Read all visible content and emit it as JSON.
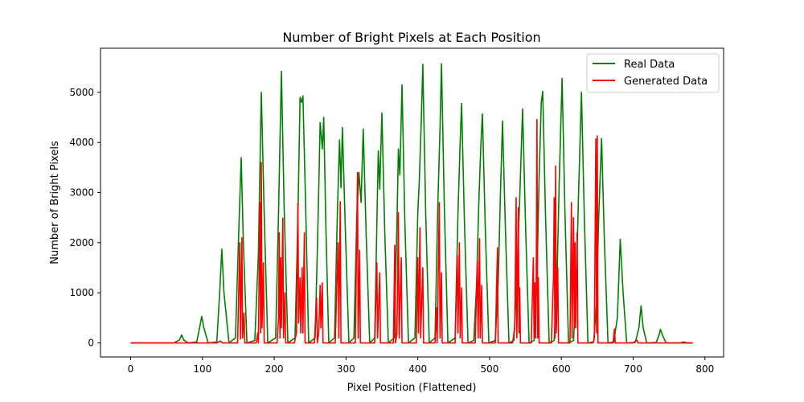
{
  "chart_data": {
    "type": "line",
    "title": "Number of Bright Pixels at Each Position",
    "xlabel": "Pixel Position (Flattened)",
    "ylabel": "Number of Bright Pixels",
    "xlim": [
      -42,
      826
    ],
    "ylim": [
      -280,
      5880
    ],
    "xticks": [
      0,
      100,
      200,
      300,
      400,
      500,
      600,
      700,
      800
    ],
    "yticks": [
      0,
      1000,
      2000,
      3000,
      4000,
      5000
    ],
    "xtick_labels": [
      "0",
      "100",
      "200",
      "300",
      "400",
      "500",
      "600",
      "700",
      "800"
    ],
    "ytick_labels": [
      "0",
      "1000",
      "2000",
      "3000",
      "4000",
      "5000"
    ],
    "grid": false,
    "legend_position": "upper right",
    "series": [
      {
        "name": "Real Data",
        "color": "#008000",
        "points": [
          [
            0,
            0
          ],
          [
            60,
            0
          ],
          [
            68,
            60
          ],
          [
            71,
            160
          ],
          [
            74,
            60
          ],
          [
            80,
            0
          ],
          [
            92,
            20
          ],
          [
            96,
            300
          ],
          [
            99,
            530
          ],
          [
            102,
            300
          ],
          [
            108,
            0
          ],
          [
            120,
            20
          ],
          [
            124,
            1000
          ],
          [
            127,
            1870
          ],
          [
            130,
            1000
          ],
          [
            137,
            0
          ],
          [
            146,
            100
          ],
          [
            151,
            2400
          ],
          [
            154,
            3700
          ],
          [
            157,
            2000
          ],
          [
            162,
            0
          ],
          [
            173,
            50
          ],
          [
            178,
            1800
          ],
          [
            182,
            5000
          ],
          [
            186,
            2600
          ],
          [
            191,
            0
          ],
          [
            202,
            100
          ],
          [
            206,
            2600
          ],
          [
            210,
            5420
          ],
          [
            214,
            2600
          ],
          [
            219,
            0
          ],
          [
            229,
            100
          ],
          [
            233,
            2500
          ],
          [
            236,
            4900
          ],
          [
            238,
            4800
          ],
          [
            240,
            4930
          ],
          [
            244,
            2600
          ],
          [
            248,
            0
          ],
          [
            257,
            100
          ],
          [
            261,
            2400
          ],
          [
            264,
            4400
          ],
          [
            267,
            3870
          ],
          [
            269,
            4500
          ],
          [
            272,
            2300
          ],
          [
            276,
            0
          ],
          [
            284,
            100
          ],
          [
            288,
            2600
          ],
          [
            291,
            4050
          ],
          [
            293,
            3100
          ],
          [
            295,
            4300
          ],
          [
            299,
            2300
          ],
          [
            304,
            0
          ],
          [
            311,
            100
          ],
          [
            315,
            2500
          ],
          [
            318,
            3400
          ],
          [
            321,
            2800
          ],
          [
            324,
            4270
          ],
          [
            328,
            2200
          ],
          [
            333,
            0
          ],
          [
            340,
            100
          ],
          [
            343,
            2400
          ],
          [
            345,
            3830
          ],
          [
            347,
            3070
          ],
          [
            350,
            4590
          ],
          [
            354,
            2200
          ],
          [
            359,
            0
          ],
          [
            367,
            100
          ],
          [
            371,
            2400
          ],
          [
            373,
            3870
          ],
          [
            375,
            3350
          ],
          [
            378,
            5150
          ],
          [
            382,
            2400
          ],
          [
            387,
            0
          ],
          [
            396,
            100
          ],
          [
            400,
            2600
          ],
          [
            402,
            3200
          ],
          [
            405,
            4500
          ],
          [
            407,
            5560
          ],
          [
            411,
            2600
          ],
          [
            416,
            0
          ],
          [
            424,
            100
          ],
          [
            428,
            2800
          ],
          [
            431,
            4300
          ],
          [
            433,
            5570
          ],
          [
            437,
            2700
          ],
          [
            442,
            0
          ],
          [
            452,
            100
          ],
          [
            456,
            2600
          ],
          [
            459,
            4000
          ],
          [
            461,
            4780
          ],
          [
            465,
            2400
          ],
          [
            470,
            0
          ],
          [
            478,
            50
          ],
          [
            482,
            1200
          ],
          [
            485,
            2800
          ],
          [
            488,
            4000
          ],
          [
            490,
            4570
          ],
          [
            494,
            2300
          ],
          [
            499,
            0
          ],
          [
            508,
            50
          ],
          [
            512,
            1200
          ],
          [
            515,
            2900
          ],
          [
            518,
            4430
          ],
          [
            522,
            2300
          ],
          [
            527,
            0
          ],
          [
            534,
            50
          ],
          [
            538,
            1300
          ],
          [
            542,
            2900
          ],
          [
            546,
            4670
          ],
          [
            550,
            2400
          ],
          [
            555,
            0
          ],
          [
            562,
            50
          ],
          [
            566,
            1300
          ],
          [
            569,
            3300
          ],
          [
            572,
            4800
          ],
          [
            574,
            5020
          ],
          [
            578,
            2500
          ],
          [
            583,
            0
          ],
          [
            590,
            50
          ],
          [
            594,
            1300
          ],
          [
            597,
            3200
          ],
          [
            601,
            5280
          ],
          [
            605,
            2600
          ],
          [
            610,
            0
          ],
          [
            617,
            50
          ],
          [
            621,
            1300
          ],
          [
            624,
            3000
          ],
          [
            628,
            5000
          ],
          [
            632,
            2500
          ],
          [
            637,
            0
          ],
          [
            645,
            20
          ],
          [
            649,
            800
          ],
          [
            652,
            2500
          ],
          [
            656,
            4080
          ],
          [
            660,
            2000
          ],
          [
            665,
            0
          ],
          [
            673,
            20
          ],
          [
            678,
            500
          ],
          [
            682,
            2070
          ],
          [
            686,
            1000
          ],
          [
            691,
            0
          ],
          [
            703,
            10
          ],
          [
            708,
            300
          ],
          [
            711,
            740
          ],
          [
            714,
            300
          ],
          [
            719,
            0
          ],
          [
            732,
            10
          ],
          [
            736,
            150
          ],
          [
            738,
            270
          ],
          [
            741,
            150
          ],
          [
            746,
            0
          ],
          [
            765,
            0
          ],
          [
            770,
            20
          ],
          [
            775,
            0
          ],
          [
            783,
            0
          ]
        ]
      },
      {
        "name": "Generated Data",
        "color": "#ff0000",
        "points": [
          [
            0,
            0
          ],
          [
            100,
            0
          ],
          [
            120,
            0
          ],
          [
            125,
            40
          ],
          [
            128,
            0
          ],
          [
            149,
            0
          ],
          [
            152,
            2000
          ],
          [
            153,
            80
          ],
          [
            155,
            2100
          ],
          [
            156,
            100
          ],
          [
            158,
            600
          ],
          [
            159,
            0
          ],
          [
            175,
            0
          ],
          [
            177,
            200
          ],
          [
            178,
            0
          ],
          [
            180,
            2800
          ],
          [
            181,
            200
          ],
          [
            182,
            3600
          ],
          [
            183,
            300
          ],
          [
            185,
            1600
          ],
          [
            186,
            0
          ],
          [
            204,
            0
          ],
          [
            206,
            500
          ],
          [
            207,
            2200
          ],
          [
            208,
            100
          ],
          [
            209,
            1700
          ],
          [
            210,
            300
          ],
          [
            212,
            2490
          ],
          [
            213,
            100
          ],
          [
            215,
            1000
          ],
          [
            216,
            0
          ],
          [
            228,
            0
          ],
          [
            231,
            200
          ],
          [
            233,
            2800
          ],
          [
            234,
            400
          ],
          [
            236,
            1300
          ],
          [
            237,
            200
          ],
          [
            239,
            1500
          ],
          [
            240,
            200
          ],
          [
            242,
            2200
          ],
          [
            243,
            0
          ],
          [
            256,
            0
          ],
          [
            259,
            900
          ],
          [
            260,
            0
          ],
          [
            262,
            200
          ],
          [
            264,
            1150
          ],
          [
            265,
            300
          ],
          [
            267,
            1200
          ],
          [
            268,
            0
          ],
          [
            285,
            0
          ],
          [
            289,
            2000
          ],
          [
            290,
            100
          ],
          [
            292,
            2820
          ],
          [
            293,
            0
          ],
          [
            313,
            0
          ],
          [
            316,
            3400
          ],
          [
            317,
            100
          ],
          [
            319,
            1850
          ],
          [
            320,
            0
          ],
          [
            340,
            0
          ],
          [
            343,
            1600
          ],
          [
            344,
            100
          ],
          [
            347,
            1400
          ],
          [
            348,
            0
          ],
          [
            366,
            0
          ],
          [
            368,
            1950
          ],
          [
            369,
            0
          ],
          [
            371,
            200
          ],
          [
            373,
            2600
          ],
          [
            374,
            100
          ],
          [
            377,
            1700
          ],
          [
            378,
            0
          ],
          [
            398,
            0
          ],
          [
            400,
            1700
          ],
          [
            401,
            200
          ],
          [
            403,
            2300
          ],
          [
            404,
            100
          ],
          [
            407,
            1500
          ],
          [
            408,
            0
          ],
          [
            424,
            0
          ],
          [
            426,
            700
          ],
          [
            427,
            0
          ],
          [
            430,
            2800
          ],
          [
            431,
            100
          ],
          [
            433,
            1400
          ],
          [
            434,
            0
          ],
          [
            452,
            0
          ],
          [
            455,
            1750
          ],
          [
            456,
            200
          ],
          [
            458,
            2000
          ],
          [
            459,
            100
          ],
          [
            461,
            1100
          ],
          [
            462,
            0
          ],
          [
            480,
            0
          ],
          [
            483,
            1650
          ],
          [
            484,
            100
          ],
          [
            486,
            2080
          ],
          [
            487,
            100
          ],
          [
            489,
            1150
          ],
          [
            490,
            0
          ],
          [
            508,
            0
          ],
          [
            511,
            1900
          ],
          [
            512,
            0
          ],
          [
            532,
            0
          ],
          [
            535,
            300
          ],
          [
            537,
            2900
          ],
          [
            538,
            100
          ],
          [
            540,
            2700
          ],
          [
            541,
            200
          ],
          [
            542,
            1100
          ],
          [
            543,
            0
          ],
          [
            558,
            0
          ],
          [
            561,
            1700
          ],
          [
            562,
            100
          ],
          [
            563,
            1200
          ],
          [
            564,
            100
          ],
          [
            565,
            1100
          ],
          [
            566,
            4460
          ],
          [
            567,
            100
          ],
          [
            568,
            1300
          ],
          [
            569,
            0
          ],
          [
            586,
            0
          ],
          [
            589,
            1300
          ],
          [
            590,
            2900
          ],
          [
            591,
            100
          ],
          [
            592,
            3530
          ],
          [
            593,
            200
          ],
          [
            595,
            1500
          ],
          [
            596,
            0
          ],
          [
            612,
            0
          ],
          [
            614,
            2800
          ],
          [
            615,
            100
          ],
          [
            617,
            2500
          ],
          [
            618,
            300
          ],
          [
            619,
            2000
          ],
          [
            620,
            300
          ],
          [
            622,
            2200
          ],
          [
            623,
            0
          ],
          [
            644,
            0
          ],
          [
            646,
            100
          ],
          [
            648,
            4070
          ],
          [
            649,
            200
          ],
          [
            650,
            4130
          ],
          [
            651,
            0
          ],
          [
            672,
            0
          ],
          [
            674,
            280
          ],
          [
            675,
            0
          ],
          [
            700,
            0
          ],
          [
            705,
            60
          ],
          [
            707,
            0
          ],
          [
            783,
            0
          ]
        ]
      }
    ]
  }
}
